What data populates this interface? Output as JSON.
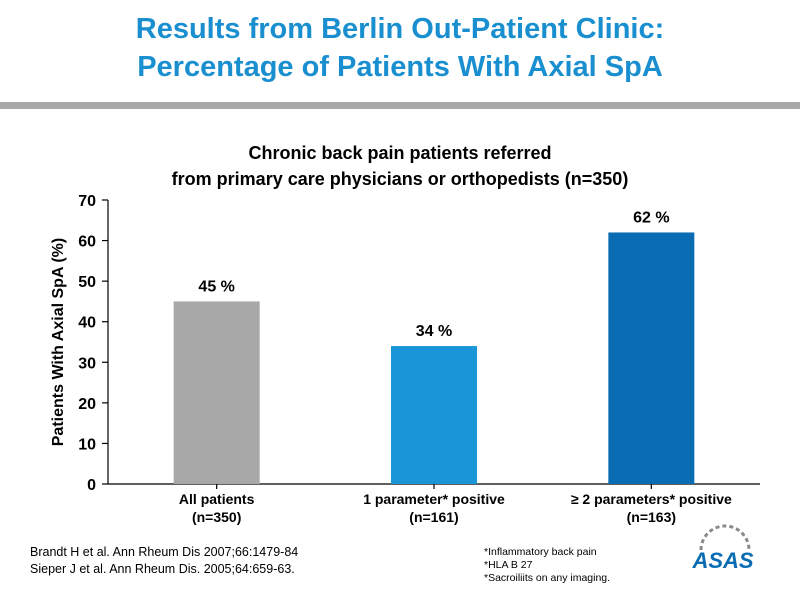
{
  "slide": {
    "title_line1": "Results from Berlin Out-Patient Clinic:",
    "title_line2": "Percentage of Patients With Axial SpA"
  },
  "chart_data": {
    "type": "bar",
    "title_lines": [
      "Chronic back pain patients referred",
      "from primary care physicians or orthopedists (n=350)"
    ],
    "ylabel": "Patients With Axial SpA (%)",
    "xlabel": "",
    "ylim": [
      0,
      70
    ],
    "yticks": [
      0,
      10,
      20,
      30,
      40,
      50,
      60,
      70
    ],
    "grid": false,
    "categories": [
      [
        "All patients",
        "(n=350)"
      ],
      [
        "1 parameter* positive",
        "(n=161)"
      ],
      [
        "≥ 2 parameters* positive",
        "(n=163)"
      ]
    ],
    "values": [
      45,
      34,
      62
    ],
    "value_labels": [
      "45 %",
      "34 %",
      "62 %"
    ],
    "bar_colors": [
      "#a8a8a8",
      "#1a95d8",
      "#0a6db4"
    ]
  },
  "references": [
    "Brandt H et al. Ann Rheum Dis 2007;66:1479-84",
    "Sieper J et al. Ann Rheum Dis. 2005;64:659-63."
  ],
  "footnotes": [
    "*Inflammatory back pain",
    "*HLA B 27",
    "*Sacroiliits on any imaging."
  ],
  "logo": {
    "text": "ASAS",
    "color": "#0a6db4"
  }
}
